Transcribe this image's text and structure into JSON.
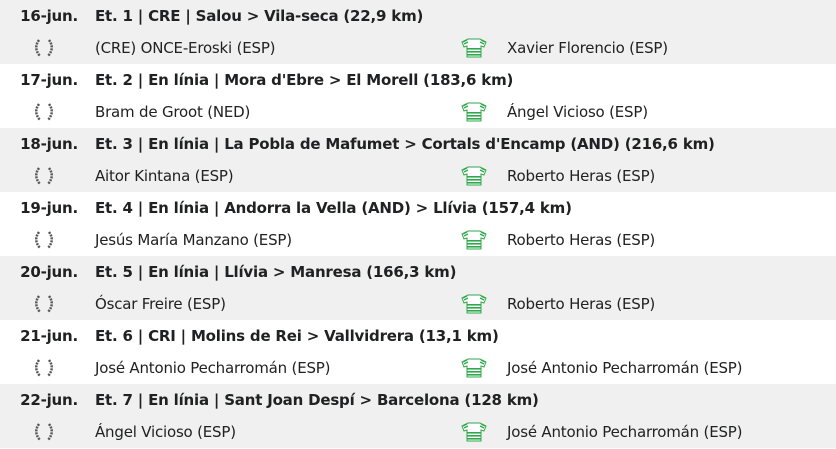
{
  "colors": {
    "alt_row": "#f0f0f0",
    "jersey": "#2ea84a",
    "laurel": "#555555"
  },
  "icons": {
    "stage_winner": "laurel-wreath-icon",
    "leader": "green-white-jersey-icon"
  },
  "stages": [
    {
      "date": "16-jun.",
      "title": "Et. 1 | CRE | Salou > Vila-seca (22,9 km)",
      "winner": "(CRE) ONCE-Eroski (ESP)",
      "leader": "Xavier Florencio (ESP)"
    },
    {
      "date": "17-jun.",
      "title": "Et. 2 | En línia | Mora d'Ebre > El Morell (183,6 km)",
      "winner": "Bram de Groot (NED)",
      "leader": "Ángel Vicioso (ESP)"
    },
    {
      "date": "18-jun.",
      "title": "Et. 3 | En línia | La Pobla de Mafumet > Cortals d'Encamp (AND) (216,6 km)",
      "winner": "Aitor Kintana (ESP)",
      "leader": "Roberto Heras (ESP)"
    },
    {
      "date": "19-jun.",
      "title": "Et. 4 | En línia | Andorra la Vella (AND) > Llívia (157,4 km)",
      "winner": "Jesús María Manzano (ESP)",
      "leader": "Roberto Heras (ESP)"
    },
    {
      "date": "20-jun.",
      "title": "Et. 5 | En línia | Llívia > Manresa (166,3 km)",
      "winner": "Óscar Freire (ESP)",
      "leader": "Roberto Heras (ESP)"
    },
    {
      "date": "21-jun.",
      "title": "Et. 6 | CRI | Molins de Rei > Vallvidrera (13,1 km)",
      "winner": "José Antonio Pecharromán (ESP)",
      "leader": "José Antonio Pecharromán (ESP)"
    },
    {
      "date": "22-jun.",
      "title": "Et. 7 | En línia | Sant Joan Despí > Barcelona (128 km)",
      "winner": "Ángel Vicioso (ESP)",
      "leader": "José Antonio Pecharromán (ESP)"
    }
  ]
}
